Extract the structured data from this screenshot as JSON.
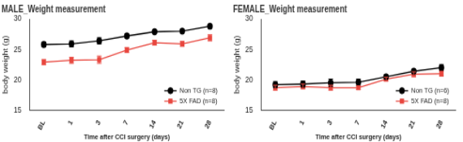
{
  "chart_data": [
    {
      "type": "line",
      "title": "MALE_Weight measurement",
      "x_label": "Time after CCI surgery (days)",
      "y_label": "body weight (g)",
      "categories": [
        "BL",
        "1",
        "3",
        "7",
        "14",
        "21",
        "28"
      ],
      "series": [
        {
          "name": "Non TG (n=8)",
          "color": "#000000",
          "marker": "circle",
          "values": [
            25.8,
            25.9,
            26.4,
            27.2,
            27.9,
            28.0,
            28.8
          ],
          "errors": [
            0.4,
            0.5,
            0.5,
            0.3,
            0.2,
            0.3,
            0.3
          ]
        },
        {
          "name": "5X FAD (n=8)",
          "color": "#e8473f",
          "marker": "square",
          "values": [
            22.9,
            23.2,
            23.3,
            24.9,
            26.1,
            25.9,
            26.9
          ],
          "errors": [
            0.4,
            0.5,
            0.6,
            0.4,
            0.4,
            0.4,
            0.5
          ]
        }
      ],
      "ylim": [
        15,
        30
      ],
      "yticks": [
        15,
        20,
        25,
        30
      ],
      "grid": false,
      "legend": "lower right"
    },
    {
      "type": "line",
      "title": "FEMALE_Weight measurement",
      "x_label": "Time after CCI surgery (days)",
      "y_label": "body weight (g)",
      "categories": [
        "BL",
        "1",
        "3",
        "7",
        "14",
        "21",
        "28"
      ],
      "series": [
        {
          "name": "Non TG (n=6)",
          "color": "#000000",
          "marker": "circle",
          "values": [
            19.2,
            19.3,
            19.5,
            19.6,
            20.5,
            21.4,
            22.0
          ],
          "errors": [
            0.5,
            0.5,
            0.6,
            0.5,
            0.3,
            0.3,
            0.5
          ]
        },
        {
          "name": "5X FAD (n=8)",
          "color": "#e8473f",
          "marker": "square",
          "values": [
            18.7,
            18.9,
            18.7,
            18.7,
            20.1,
            20.9,
            21.0
          ],
          "errors": [
            0.4,
            0.4,
            0.4,
            0.3,
            0.3,
            0.4,
            0.4
          ]
        }
      ],
      "ylim": [
        15,
        30
      ],
      "yticks": [
        15,
        20,
        25,
        30
      ],
      "grid": false,
      "legend": "lower right"
    }
  ]
}
